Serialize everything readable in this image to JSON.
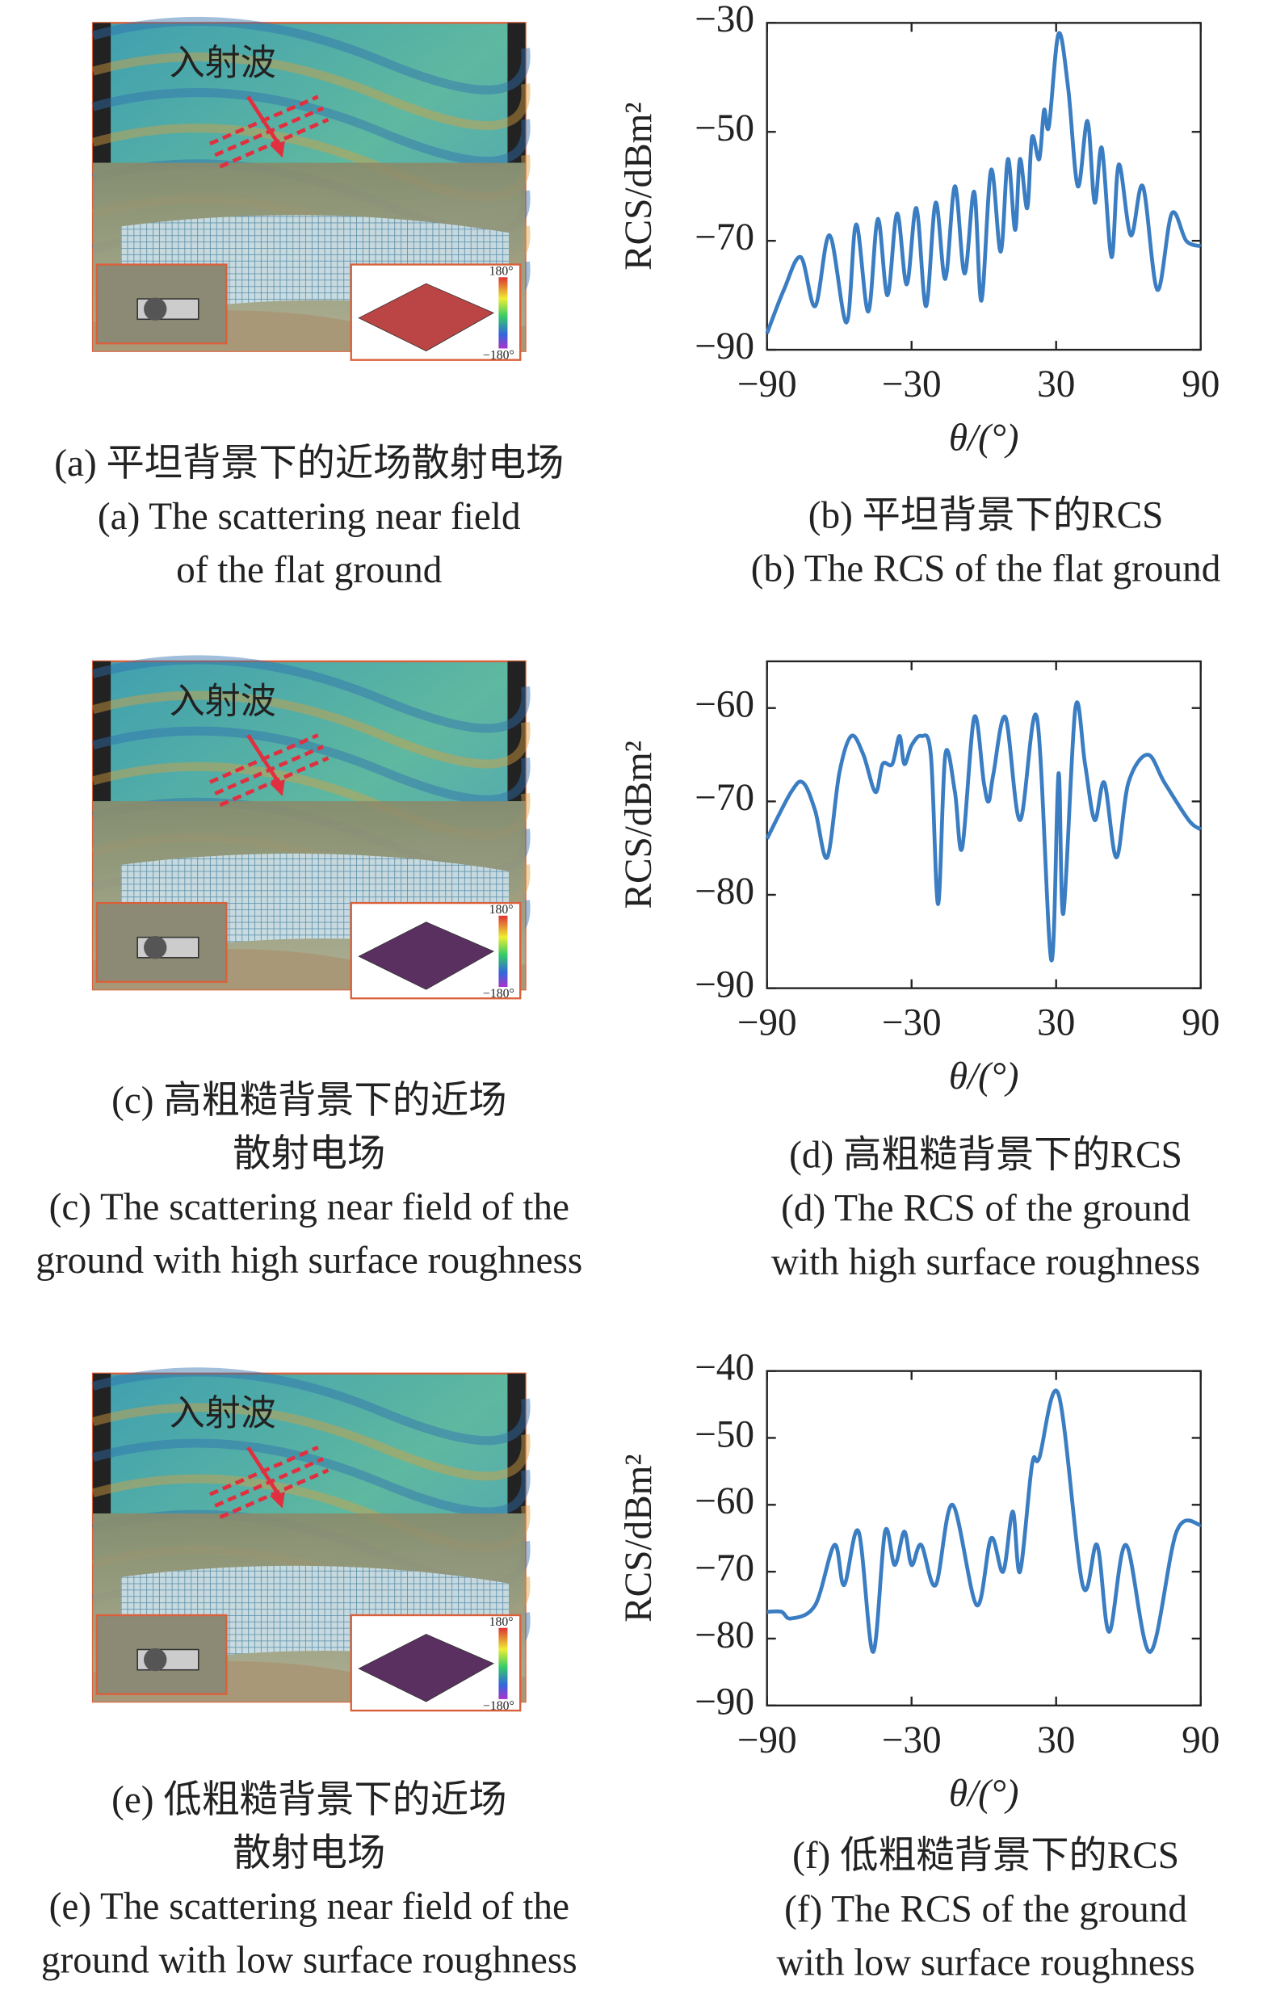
{
  "chart_data": [
    {
      "type": "line",
      "xlabel": "θ/(°)",
      "ylabel": "RCS/dBm²",
      "color": "#3a7dc2",
      "caption": [
        "(b) 平坦背景下的RCS",
        "(b) The RCS of the flat ground"
      ],
      "xlim": [
        -90,
        90
      ],
      "ylim": [
        -90,
        -30
      ],
      "xticks": [
        {
          "value": -90,
          "label": "−90"
        },
        {
          "value": -30,
          "label": "−30"
        },
        30,
        90
      ],
      "yticks": [
        {
          "value": -30,
          "label": "−30"
        },
        {
          "value": -50,
          "label": "−50"
        },
        {
          "value": -70,
          "label": "−70"
        },
        {
          "value": -90,
          "label": "−90"
        }
      ],
      "series": [
        {
          "name": "RCS",
          "color": "#3a7dc2",
          "x": [
            -90,
            -83,
            -76,
            -70,
            -64,
            -57,
            -53,
            -48,
            -44,
            -40,
            -36,
            -32,
            -28,
            -24,
            -20,
            -16,
            -12,
            -8,
            -4,
            -1,
            3,
            7,
            10,
            13,
            15,
            18,
            20,
            23,
            25,
            27,
            31,
            35,
            39,
            43,
            46,
            49,
            53,
            56,
            61,
            66,
            72,
            78,
            84,
            90
          ],
          "values": [
            -87,
            -79,
            -73,
            -82,
            -69,
            -85,
            -67,
            -83,
            -66,
            -80,
            -65,
            -78,
            -64,
            -82,
            -63,
            -77,
            -60,
            -76,
            -61,
            -81,
            -57,
            -72,
            -55,
            -68,
            -55,
            -64,
            -51,
            -55,
            -46,
            -49,
            -32,
            -42,
            -60,
            -48,
            -63,
            -53,
            -73,
            -56,
            -69,
            -60,
            -79,
            -65,
            -70,
            -71
          ]
        }
      ]
    },
    {
      "type": "line",
      "xlabel": "θ/(°)",
      "ylabel": "RCS/dBm²",
      "color": "#3a7dc2",
      "caption": [
        "(d) 高粗糙背景下的RCS",
        "(d) The RCS of the ground",
        "with high surface roughness"
      ],
      "xlim": [
        -90,
        90
      ],
      "ylim": [
        -90,
        -55
      ],
      "xticks": [
        {
          "value": -90,
          "label": "−90"
        },
        {
          "value": -30,
          "label": "−30"
        },
        30,
        90
      ],
      "yticks": [
        {
          "value": -60,
          "label": "−60"
        },
        {
          "value": -70,
          "label": "−70"
        },
        {
          "value": -80,
          "label": "−80"
        },
        {
          "value": -90,
          "label": "−90"
        }
      ],
      "series": [
        {
          "name": "RCS",
          "color": "#3a7dc2",
          "x": [
            -90,
            -80,
            -75,
            -70,
            -65,
            -60,
            -55,
            -50,
            -45,
            -42,
            -38,
            -35,
            -33,
            -30,
            -26,
            -22,
            -19,
            -16,
            -12,
            -9,
            -4,
            0,
            2,
            4,
            9,
            15,
            22,
            28,
            31,
            33,
            38,
            42,
            46,
            50,
            55,
            60,
            68,
            75,
            85,
            90
          ],
          "values": [
            -74,
            -69,
            -68,
            -71,
            -76,
            -67,
            -63,
            -65,
            -69,
            -66,
            -66,
            -63,
            -66,
            -64,
            -63,
            -65,
            -81,
            -65,
            -69,
            -75,
            -61,
            -68,
            -70,
            -67,
            -61,
            -72,
            -61,
            -87,
            -67,
            -82,
            -60,
            -66,
            -72,
            -68,
            -76,
            -68,
            -65,
            -68,
            -72,
            -73
          ]
        }
      ]
    },
    {
      "type": "line",
      "xlabel": "θ/(°)",
      "ylabel": "RCS/dBm²",
      "color": "#3a7dc2",
      "caption": [
        "(f) 低粗糙背景下的RCS",
        "(f) The RCS of the ground",
        "with low  surface roughness"
      ],
      "xlim": [
        -90,
        90
      ],
      "ylim": [
        -90,
        -40
      ],
      "xticks": [
        {
          "value": -90,
          "label": "−90"
        },
        {
          "value": -30,
          "label": "−30"
        },
        30,
        90
      ],
      "yticks": [
        {
          "value": -40,
          "label": "−40"
        },
        {
          "value": -50,
          "label": "−50"
        },
        {
          "value": -60,
          "label": "−60"
        },
        {
          "value": -70,
          "label": "−70"
        },
        {
          "value": -80,
          "label": "−80"
        },
        {
          "value": -90,
          "label": "−90"
        }
      ],
      "series": [
        {
          "name": "RCS",
          "color": "#3a7dc2",
          "x": [
            -90,
            -84,
            -80,
            -70,
            -62,
            -58,
            -52,
            -46,
            -41,
            -37,
            -33,
            -30,
            -26,
            -20,
            -13,
            -3,
            3,
            8,
            12,
            15,
            20,
            23,
            31,
            41,
            47,
            52,
            59,
            69,
            80,
            90
          ],
          "values": [
            -76,
            -76,
            -77,
            -75,
            -66,
            -72,
            -64,
            -82,
            -64,
            -69,
            -64,
            -69,
            -66,
            -72,
            -60,
            -75,
            -65,
            -70,
            -61,
            -70,
            -54,
            -53,
            -43.5,
            -72,
            -66,
            -79,
            -66,
            -82,
            -64,
            -63
          ]
        }
      ]
    }
  ],
  "images": [
    {
      "wave_label": "入射波",
      "cbar_max": "180°",
      "cbar_min": "−180°",
      "caption": [
        "(a) 平坦背景下的近场散射电场",
        "(a) The scattering near field",
        "of the flat ground"
      ]
    },
    {
      "wave_label": "入射波",
      "cbar_max": "180°",
      "cbar_min": "−180°",
      "caption": [
        "(c) 高粗糙背景下的近场",
        "散射电场",
        "(c) The scattering near field of the",
        "ground with high surface roughness"
      ]
    },
    {
      "wave_label": "入射波",
      "cbar_max": "180°",
      "cbar_min": "−180°",
      "caption": [
        "(e) 低粗糙背景下的近场",
        "散射电场",
        "(e) The scattering near field of the",
        "ground with low surface roughness"
      ]
    }
  ]
}
